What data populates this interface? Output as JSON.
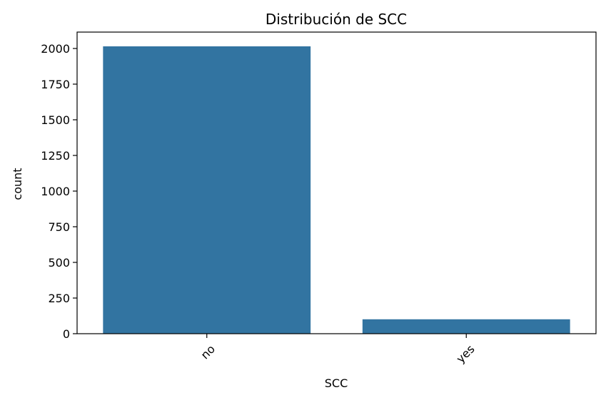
{
  "chart_data": {
    "type": "bar",
    "title": "Distribución de SCC",
    "xlabel": "SCC",
    "ylabel": "count",
    "categories": [
      "no",
      "yes"
    ],
    "values": [
      2015,
      101
    ],
    "ylim": [
      0,
      2115
    ],
    "yticks": [
      0,
      250,
      500,
      750,
      1000,
      1250,
      1500,
      1750,
      2000
    ],
    "ytick_labels": [
      "0",
      "250",
      "500",
      "750",
      "1000",
      "1250",
      "1500",
      "1750",
      "2000"
    ],
    "xtick_rotation": 45,
    "grid": false,
    "legend": "none",
    "bar_color": "#3274a1"
  }
}
